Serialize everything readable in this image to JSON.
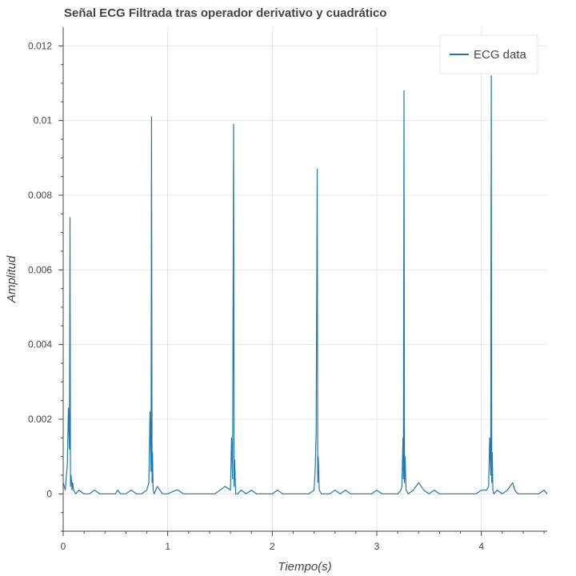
{
  "chart_data": {
    "type": "line",
    "title": "Señal ECG Filtrada tras operador derivativo y cuadrático",
    "xlabel": "Tiempo(s)",
    "ylabel": "Amplitud",
    "xlim": [
      0,
      4.63
    ],
    "ylim": [
      -0.001,
      0.0125
    ],
    "x_ticks": [
      0,
      1,
      2,
      3,
      4
    ],
    "x_tick_labels": [
      "0",
      "1",
      "2",
      "3",
      "4"
    ],
    "y_ticks": [
      0,
      0.002,
      0.004,
      0.006,
      0.008,
      0.01,
      0.012
    ],
    "y_tick_labels": [
      "0",
      "0.002",
      "0.004",
      "0.006",
      "0.008",
      "0.01",
      "0.012"
    ],
    "grid": true,
    "legend_position": "top-right",
    "series": [
      {
        "name": "ECG data",
        "color": "#1f77b4",
        "x": [
          0.0,
          0.02,
          0.04,
          0.05,
          0.06,
          0.065,
          0.07,
          0.075,
          0.08,
          0.085,
          0.09,
          0.1,
          0.12,
          0.15,
          0.2,
          0.25,
          0.3,
          0.35,
          0.4,
          0.45,
          0.5,
          0.52,
          0.55,
          0.6,
          0.65,
          0.7,
          0.75,
          0.8,
          0.82,
          0.83,
          0.84,
          0.845,
          0.85,
          0.855,
          0.86,
          0.87,
          0.9,
          0.95,
          1.0,
          1.08,
          1.1,
          1.15,
          1.2,
          1.25,
          1.3,
          1.35,
          1.4,
          1.45,
          1.5,
          1.55,
          1.6,
          1.61,
          1.62,
          1.63,
          1.635,
          1.64,
          1.65,
          1.67,
          1.7,
          1.75,
          1.8,
          1.85,
          1.9,
          1.95,
          2.0,
          2.05,
          2.1,
          2.15,
          2.2,
          2.25,
          2.3,
          2.35,
          2.4,
          2.41,
          2.42,
          2.43,
          2.435,
          2.44,
          2.45,
          2.47,
          2.5,
          2.55,
          2.6,
          2.65,
          2.7,
          2.75,
          2.8,
          2.85,
          2.9,
          2.95,
          3.0,
          3.05,
          3.1,
          3.15,
          3.2,
          3.23,
          3.24,
          3.25,
          3.255,
          3.26,
          3.265,
          3.27,
          3.28,
          3.3,
          3.35,
          3.4,
          3.45,
          3.5,
          3.55,
          3.6,
          3.65,
          3.7,
          3.75,
          3.8,
          3.85,
          3.9,
          3.95,
          4.0,
          4.05,
          4.07,
          4.08,
          4.09,
          4.095,
          4.1,
          4.105,
          4.11,
          4.12,
          4.15,
          4.2,
          4.25,
          4.3,
          4.32,
          4.35,
          4.4,
          4.45,
          4.5,
          4.55,
          4.6,
          4.63
        ],
        "y": [
          0.0003,
          0.0001,
          0.0008,
          0.0023,
          0.0012,
          0.0074,
          0.0002,
          0.0005,
          0.0003,
          0.0001,
          0.0003,
          0.0001,
          0.0,
          0.0001,
          0.0,
          0.0,
          0.0001,
          0.0,
          0.0,
          0.0,
          0.0,
          0.0001,
          0.0,
          0.0,
          0.0001,
          0.0,
          0.0,
          0.0001,
          0.0003,
          0.0022,
          0.0006,
          0.0101,
          0.0003,
          0.0011,
          0.0001,
          0.0,
          0.0002,
          0.0,
          0.0,
          0.0001,
          0.0001,
          0.0,
          0.0,
          0.0,
          0.0,
          0.0,
          0.0,
          0.0,
          0.0001,
          0.0002,
          0.0001,
          0.0015,
          0.0004,
          0.0099,
          0.0002,
          0.0009,
          0.0,
          0.0,
          0.0001,
          0.0,
          0.0001,
          0.0,
          0.0,
          0.0,
          0.0,
          0.0001,
          0.0,
          0.0,
          0.0,
          0.0,
          0.0,
          0.0,
          0.0001,
          0.0006,
          0.0016,
          0.0087,
          0.0003,
          0.001,
          0.0001,
          0.0,
          0.0,
          0.0,
          0.0001,
          0.0,
          0.0001,
          0.0,
          0.0,
          0.0,
          0.0,
          0.0,
          0.0001,
          0.0,
          0.0,
          0.0,
          0.0,
          0.0001,
          0.0002,
          0.0015,
          0.0004,
          0.0108,
          0.0003,
          0.001,
          0.0001,
          0.0,
          0.0001,
          0.0003,
          0.0001,
          0.0,
          0.0001,
          0.0,
          0.0,
          0.0,
          0.0,
          0.0,
          0.0,
          0.0,
          0.0,
          0.0001,
          0.0001,
          0.0002,
          0.0015,
          0.0005,
          0.0112,
          0.0003,
          0.0011,
          0.0001,
          0.0,
          0.0001,
          0.0,
          0.0001,
          0.0003,
          0.0001,
          0.0,
          0.0,
          0.0,
          0.0,
          0.0,
          0.0001,
          0.0
        ]
      }
    ]
  }
}
